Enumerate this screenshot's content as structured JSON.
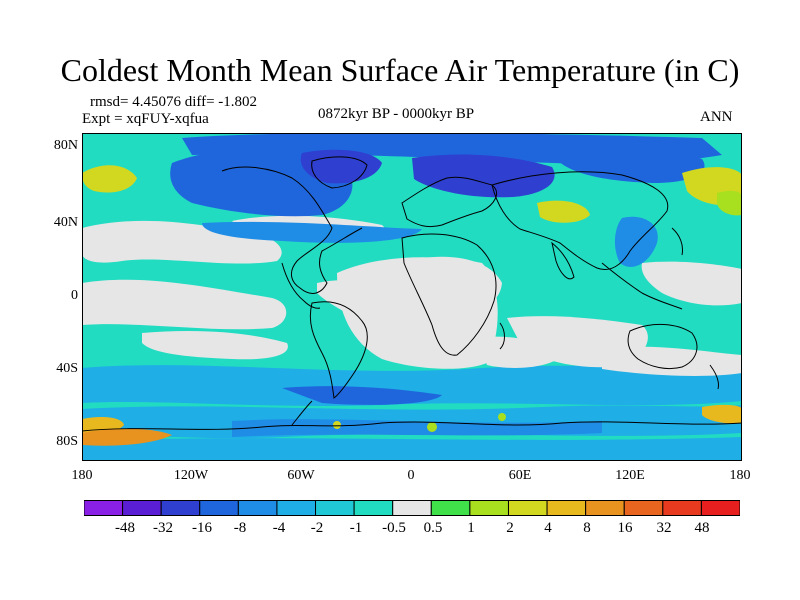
{
  "title": "Coldest Month Mean Surface Air Temperature (in C)",
  "stats": "rmsd= 4.45076 diff= -1.802",
  "experiment": "Expt = xqFUY-xqfua",
  "period": "0872kyr BP - 0000kyr BP",
  "season": "ANN",
  "lat_labels": [
    "80N",
    "40N",
    "0",
    "40S",
    "80S"
  ],
  "lon_labels": [
    "180",
    "120W",
    "60W",
    "0",
    "60E",
    "120E",
    "180"
  ],
  "colorbar": {
    "labels": [
      "-48",
      "-32",
      "-16",
      "-8",
      "-4",
      "-2",
      "-1",
      "-0.5",
      "0.5",
      "1",
      "2",
      "4",
      "8",
      "16",
      "32",
      "48"
    ],
    "colors": [
      "#8a1fe6",
      "#5a1fd4",
      "#2f3fd0",
      "#1f66dd",
      "#1f8ce6",
      "#1faee6",
      "#20c8d6",
      "#22dcc2",
      "#e6e6e6",
      "#3fe04a",
      "#a8e01f",
      "#d2d81f",
      "#e8b81f",
      "#e8921f",
      "#e8651f",
      "#e83a1f",
      "#e81f1f"
    ]
  },
  "map_colors": {
    "ocean_base": "#22dcc2",
    "neutral": "#e6e6e6",
    "light_blue": "#1faee6",
    "mid_blue": "#1f8ce6",
    "blue": "#1f66dd",
    "dark_blue": "#2f3fd0",
    "green": "#a8e01f",
    "yellow": "#d2d81f",
    "orange": "#e8921f",
    "coast": "#000000"
  }
}
